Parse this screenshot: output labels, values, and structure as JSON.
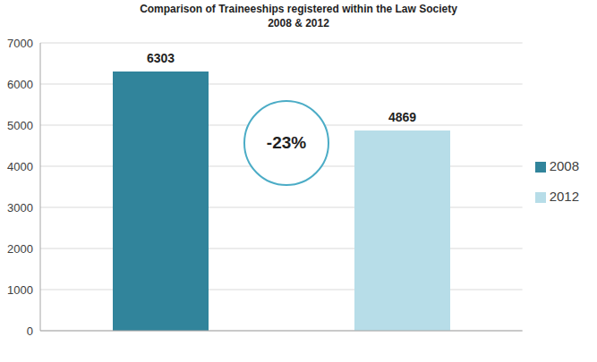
{
  "chart_data": {
    "type": "bar",
    "title": "Comparison of Traineeships registered within the Law Society",
    "subtitle": "2008 & 2012",
    "categories": [
      null
    ],
    "series": [
      {
        "name": "2008",
        "color": "#31849b",
        "values": [
          6303
        ]
      },
      {
        "name": "2012",
        "color": "#b7dde8",
        "values": [
          4869
        ]
      }
    ],
    "ylim": [
      0,
      7000
    ],
    "yticks": [
      0,
      1000,
      2000,
      3000,
      4000,
      5000,
      6000,
      7000
    ],
    "grid": true,
    "legend": "right",
    "data_labels": true,
    "tick_labels": "y",
    "annotations": [
      "-23%"
    ]
  }
}
